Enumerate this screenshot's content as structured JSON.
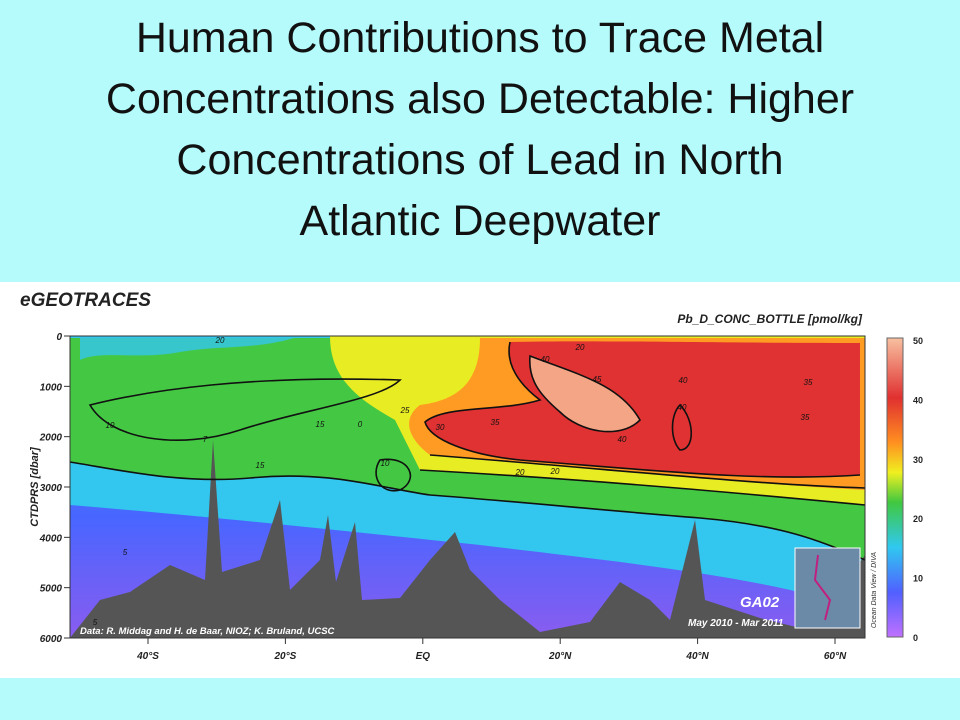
{
  "title_lines": [
    "Human Contributions to Trace Metal",
    "Concentrations also Detectable: Higher",
    "Concentrations of Lead in North",
    "Atlantic Deepwater"
  ],
  "figure": {
    "brand": "eGEOTRACES",
    "variable": "Pb_D_CONC_BOTTLE [pmol/kg]",
    "y_axis_label": "CTDPRS [dbar]",
    "y_ticks": [
      "0",
      "1000",
      "2000",
      "3000",
      "4000",
      "5000",
      "6000"
    ],
    "x_ticks": [
      "40°S",
      "20°S",
      "EQ",
      "20°N",
      "40°N",
      "60°N"
    ],
    "colorbar_ticks": [
      "50",
      "40",
      "30",
      "20",
      "10",
      "0"
    ],
    "credit": "Data: R. Middag and H. de Baar, NIOZ; K. Bruland, UCSC",
    "section": "GA02",
    "period": "May 2010 - Mar 2011",
    "watermark": "Ocean Data View / DIVA",
    "contour_labels": [
      "20",
      "20",
      "20",
      "10",
      "15",
      "15",
      "7",
      "0",
      "25",
      "30",
      "35",
      "40",
      "45",
      "40",
      "40",
      "40",
      "35",
      "35",
      "20",
      "10",
      "5",
      "5"
    ]
  }
}
